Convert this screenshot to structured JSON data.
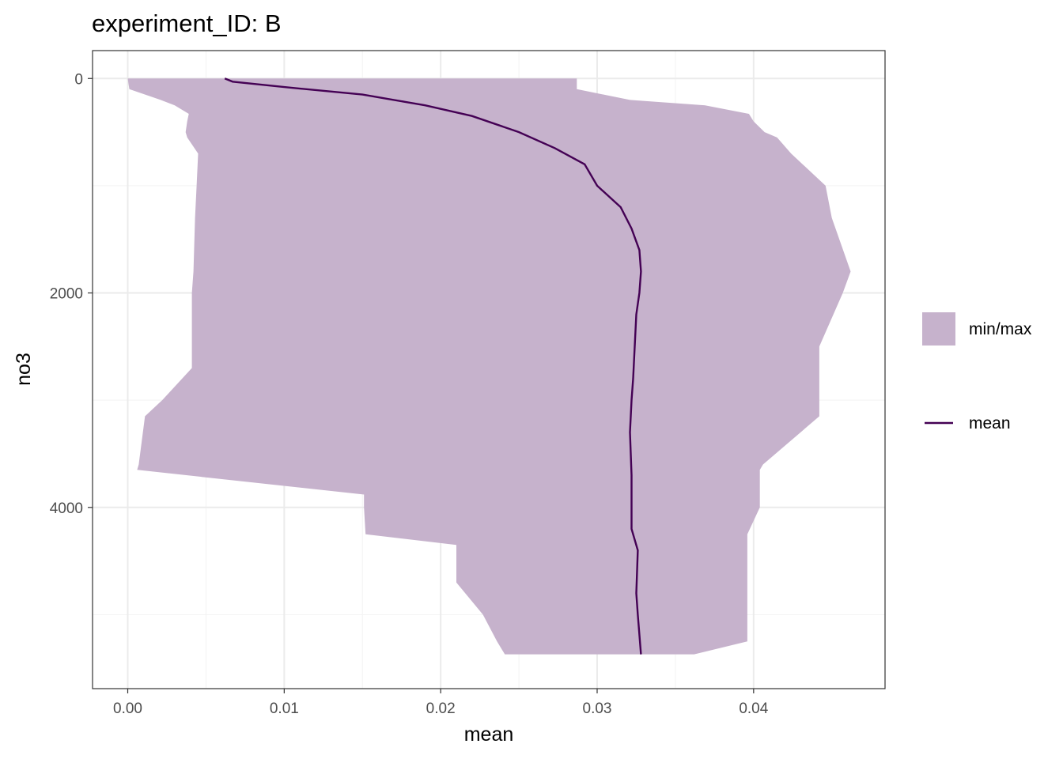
{
  "chart_data": {
    "type": "area",
    "title": "experiment_ID: B",
    "xlabel": "mean",
    "ylabel": "no3",
    "xlim": [
      -0.00225,
      0.0484
    ],
    "ylim": [
      5690,
      -260
    ],
    "y_reversed": true,
    "x_ticks": [
      0.0,
      0.01,
      0.02,
      0.03,
      0.04
    ],
    "x_tick_labels": [
      "0.00",
      "0.01",
      "0.02",
      "0.03",
      "0.04"
    ],
    "y_ticks": [
      0,
      2000,
      4000
    ],
    "y_tick_labels": [
      "0",
      "2000",
      "4000"
    ],
    "grid": true,
    "legend_position": "right",
    "colors": {
      "band": "#c6b2cc",
      "line": "#440154",
      "grid_major": "#ebebeb",
      "grid_minor": "#f3f3f3",
      "panel_border": "#333333",
      "tick_text": "#4d4d4d"
    },
    "legend": [
      {
        "key": "band",
        "label": "min/max"
      },
      {
        "key": "line",
        "label": "mean"
      }
    ],
    "band": {
      "name": "min/max",
      "depth": [
        0,
        100,
        200,
        250,
        330,
        400,
        500,
        550,
        700,
        1000,
        1300,
        1800,
        2000,
        2500,
        2700,
        3000,
        3150,
        3600,
        3650,
        3880,
        4000,
        4250,
        4350,
        4700,
        5000,
        5250,
        5370
      ],
      "min": [
        0.0,
        0.0001,
        0.0021,
        0.003,
        0.0039,
        0.0038,
        0.0037,
        0.0038,
        0.0045,
        0.0044,
        0.0043,
        0.0042,
        0.0041,
        0.0041,
        0.0041,
        0.0022,
        0.0011,
        0.0007,
        0.0006,
        0.0151,
        0.0151,
        0.0152,
        0.021,
        0.021,
        0.0227,
        0.0236,
        0.0241
      ],
      "max": [
        0.0287,
        0.0287,
        0.0321,
        0.0369,
        0.0397,
        0.04,
        0.0407,
        0.0415,
        0.0424,
        0.0446,
        0.045,
        0.0462,
        0.0457,
        0.0442,
        0.0442,
        0.0442,
        0.0442,
        0.0406,
        0.0404,
        0.0404,
        0.0404,
        0.0396,
        0.0396,
        0.0396,
        0.0396,
        0.0396,
        0.0362
      ]
    },
    "series": [
      {
        "name": "mean",
        "depth": [
          0,
          30,
          80,
          150,
          250,
          350,
          500,
          650,
          800,
          1000,
          1200,
          1400,
          1600,
          1800,
          2000,
          2200,
          2500,
          2800,
          3000,
          3300,
          3700,
          4000,
          4200,
          4400,
          4800,
          5000,
          5370
        ],
        "values": [
          0.0062,
          0.0067,
          0.01,
          0.015,
          0.019,
          0.022,
          0.025,
          0.0273,
          0.0292,
          0.03,
          0.0315,
          0.0322,
          0.0327,
          0.0328,
          0.0327,
          0.0325,
          0.0324,
          0.0323,
          0.0322,
          0.0321,
          0.0322,
          0.0322,
          0.0322,
          0.0326,
          0.0325,
          0.0326,
          0.0328
        ]
      }
    ]
  }
}
